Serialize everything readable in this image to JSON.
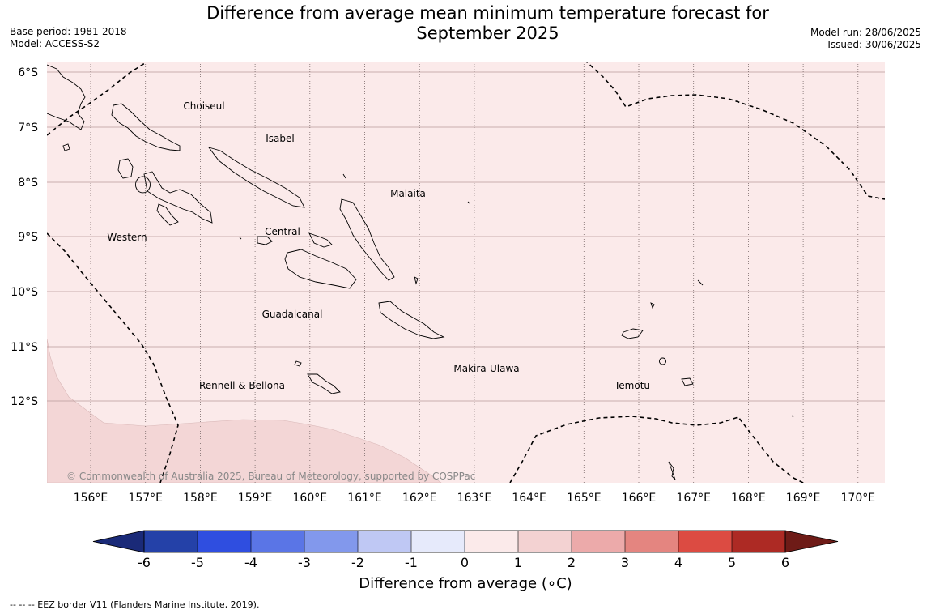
{
  "title": "Difference from average mean minimum temperature forecast for September 2025",
  "title_line1": "Difference from average mean minimum temperature forecast for",
  "title_line2": "September 2025",
  "meta_left": [
    "Base period: 1981-2018",
    "Model: ACCESS-S2"
  ],
  "meta_right": [
    "Model run: 28/06/2025",
    "Issued: 30/06/2025"
  ],
  "copyright": "© Commonwealth of Australia 2025, Bureau of Meteorology, supported by COSPPac",
  "footnote": "--  --  -- EEZ border V11 (Flanders Marine Institute, 2019).",
  "latitude_labels": [
    "6°S",
    "7°S",
    "8°S",
    "9°S",
    "10°S",
    "11°S",
    "12°S"
  ],
  "longitude_labels": [
    "156°E",
    "157°E",
    "158°E",
    "159°E",
    "160°E",
    "161°E",
    "162°E",
    "163°E",
    "164°E",
    "165°E",
    "166°E",
    "167°E",
    "168°E",
    "169°E",
    "170°E"
  ],
  "region_labels": [
    "Choiseul",
    "Isabel",
    "Malaita",
    "Western",
    "Central",
    "Guadalcanal",
    "Makira-Ulawa",
    "Rennell & Bellona",
    "Temotu"
  ],
  "colorbar": {
    "title": "Difference from average (∘C)",
    "ticks": [
      "-6",
      "-5",
      "-4",
      "-3",
      "-2",
      "-1",
      "0",
      "1",
      "2",
      "3",
      "4",
      "5",
      "6"
    ],
    "colors": [
      "#2441a8",
      "#2f4ee0",
      "#5a75e6",
      "#8298ec",
      "#bfc8f4",
      "#e6eafb",
      "#fbeaea",
      "#f3d2d2",
      "#ecaaaa",
      "#e48580",
      "#dc4b42",
      "#ad2a24"
    ],
    "under_color": "#1a2a78",
    "over_color": "#6e1b17"
  },
  "map_colors": {
    "zero_to_one": "#fbeaea",
    "one_to_two": "#f3d6d6"
  }
}
